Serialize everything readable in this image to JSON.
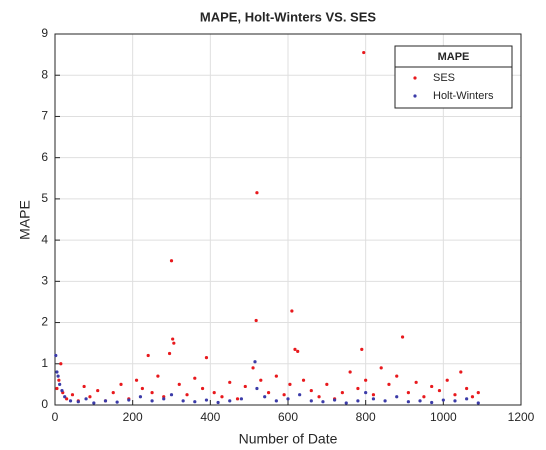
{
  "chart_data": {
    "type": "scatter",
    "title": "MAPE, Holt-Winters VS. SES",
    "x_label": "Number of Date",
    "y_label": "MAPE",
    "xlim": [
      0,
      1200
    ],
    "xticks": [
      0,
      200,
      400,
      600,
      800,
      1000,
      1200
    ],
    "ylim": [
      0,
      9
    ],
    "yticks": [
      0,
      1,
      2,
      3,
      4,
      5,
      6,
      7,
      8,
      9
    ],
    "grid": true,
    "legend_title": "MAPE",
    "legend": "northeast",
    "series": [
      {
        "name": "SES",
        "color": "#e8191d",
        "x": [
          5,
          10,
          15,
          20,
          30,
          45,
          60,
          75,
          90,
          110,
          130,
          150,
          170,
          190,
          210,
          225,
          240,
          250,
          265,
          280,
          295,
          300,
          303,
          306,
          320,
          340,
          360,
          380,
          390,
          410,
          430,
          450,
          470,
          490,
          510,
          518,
          520,
          530,
          550,
          570,
          590,
          605,
          610,
          618,
          625,
          640,
          660,
          680,
          700,
          720,
          740,
          760,
          780,
          790,
          795,
          800,
          820,
          840,
          860,
          880,
          895,
          910,
          930,
          950,
          970,
          990,
          1010,
          1030,
          1045,
          1060,
          1075,
          1090
        ],
        "values": [
          0.4,
          0.6,
          1.0,
          0.3,
          0.15,
          0.25,
          0.1,
          0.45,
          0.2,
          0.35,
          0.1,
          0.3,
          0.5,
          0.15,
          0.6,
          0.4,
          1.2,
          0.3,
          0.7,
          0.2,
          1.25,
          3.5,
          1.6,
          1.5,
          0.5,
          0.25,
          0.65,
          0.4,
          1.15,
          0.3,
          0.2,
          0.55,
          0.15,
          0.45,
          0.9,
          2.05,
          5.15,
          0.6,
          0.3,
          0.7,
          0.25,
          0.5,
          2.28,
          1.35,
          1.3,
          0.6,
          0.35,
          0.2,
          0.5,
          0.15,
          0.3,
          0.8,
          0.4,
          1.35,
          8.55,
          0.6,
          0.25,
          0.9,
          0.5,
          0.7,
          1.65,
          0.3,
          0.55,
          0.2,
          0.45,
          0.35,
          0.6,
          0.25,
          0.8,
          0.4,
          0.2,
          0.3
        ]
      },
      {
        "name": "Holt-Winters",
        "color": "#3b3ba8",
        "x": [
          2,
          5,
          8,
          12,
          18,
          25,
          40,
          60,
          80,
          100,
          130,
          160,
          190,
          220,
          250,
          280,
          300,
          330,
          360,
          390,
          420,
          450,
          480,
          515,
          520,
          540,
          570,
          600,
          630,
          660,
          690,
          720,
          750,
          780,
          800,
          820,
          850,
          880,
          910,
          940,
          970,
          1000,
          1030,
          1060,
          1090
        ],
        "values": [
          1.2,
          0.8,
          0.7,
          0.5,
          0.35,
          0.2,
          0.1,
          0.08,
          0.15,
          0.05,
          0.1,
          0.07,
          0.12,
          0.2,
          0.1,
          0.15,
          0.25,
          0.1,
          0.08,
          0.12,
          0.06,
          0.1,
          0.15,
          1.05,
          0.4,
          0.2,
          0.1,
          0.15,
          0.25,
          0.1,
          0.08,
          0.12,
          0.05,
          0.1,
          0.3,
          0.15,
          0.1,
          0.2,
          0.08,
          0.1,
          0.06,
          0.12,
          0.1,
          0.15,
          0.05
        ]
      }
    ]
  }
}
